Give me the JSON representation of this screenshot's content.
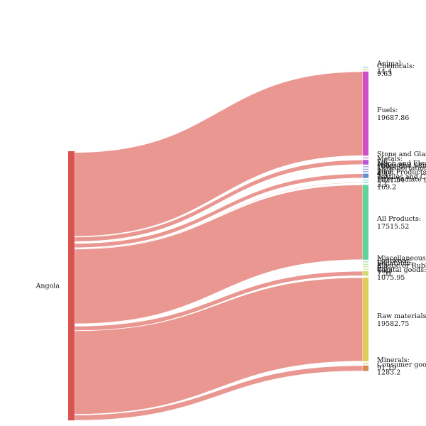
{
  "chart_data": {
    "type": "sankey",
    "source": {
      "name": "Angola",
      "color": "#d9534f"
    },
    "link_color": "#e06b61",
    "groups": [
      {
        "name": "Animal",
        "label": "Animal:",
        "value": 14.4,
        "color": "#5cc6e8",
        "value_label": "14.4",
        "value_hidden": true
      },
      {
        "name": "Chemicals",
        "label": "Chemicals:",
        "value": 9.63,
        "color": "#e8c86a",
        "value_label": "9.63"
      },
      {
        "name": "Fuels",
        "label": "Fuels:",
        "value": 19687.86,
        "color": "#d14fc6",
        "value_label": "19687.86"
      },
      {
        "name": "Stone and Glass",
        "label": "Stone and Glass:",
        "value": 7.6,
        "color": "#c04ad4",
        "value_label": "",
        "value_hidden": true
      },
      {
        "name": "Metals",
        "label": "Metals:",
        "value": 1093.97,
        "color": "#bb55d6",
        "value_label": "1093.97"
      },
      {
        "name": "Mach and Elec",
        "label": "Mach and Elec:",
        "value": 20.4,
        "color": "#8c7ae0",
        "value_label": "",
        "value_hidden": true
      },
      {
        "name": "Hides and Skins",
        "label": "Hides and Skins:",
        "value": 4.2,
        "color": "#7d86e4",
        "value_label": "",
        "value_hidden": true
      },
      {
        "name": "Transportation",
        "label": "Transportation:",
        "value": 5.31,
        "color": "#7690e6",
        "value_label": "",
        "value_hidden": true
      },
      {
        "name": "Food Products",
        "label": "Food Products:",
        "value": 1021.54,
        "color": "#6a8fd6",
        "value_label": "",
        "value_hidden": true
      },
      {
        "name": "Textiles and Clothing",
        "label": "Textiles and Clothing:",
        "value": 3.1,
        "color": "#7dcfe6",
        "value_label": "",
        "value_hidden": true
      },
      {
        "name": "Intermediate goods",
        "label": "Intermediate goods:",
        "value": 169.2,
        "color": "#5fd4c6",
        "value_label": "169.2"
      },
      {
        "name": "All Products",
        "label": "All Products:",
        "value": 17515.52,
        "color": "#5fd49a",
        "value_label": "17515.52"
      },
      {
        "name": "Miscellaneous",
        "label": "Miscellaneous:",
        "value": 6.3,
        "color": "#8fe08e",
        "value_label": "",
        "value_hidden": true
      },
      {
        "name": "Footwear",
        "label": "Footwear:",
        "value": 0.5,
        "color": "#9ee08a",
        "value_label": "",
        "value_hidden": true
      },
      {
        "name": "Vegetable",
        "label": "Vegetable:",
        "value": 10.2,
        "color": "#b0e07e",
        "value_label": "",
        "value_hidden": true
      },
      {
        "name": "Plastic or Rubber",
        "label": "Plastic or Rubber:",
        "value": 7.31,
        "color": "#c7e07a",
        "value_label": "",
        "value_hidden": true
      },
      {
        "name": "Capital goods",
        "label": "Capital goods:",
        "value": 1075.95,
        "color": "#d2dc6a",
        "value_label": "1075.95"
      },
      {
        "name": "Raw materials",
        "label": "Raw materials:",
        "value": 19582.75,
        "color": "#e0cc5a",
        "value_label": "19582.75"
      },
      {
        "name": "Minerals",
        "label": "Minerals:",
        "value": 91.19,
        "color": "#e0a85a",
        "value_label": "",
        "value_hidden": true
      },
      {
        "name": "Consumer goods",
        "label": "Consumer goods:",
        "value": 1283.2,
        "color": "#d98a52",
        "value_label": "1283.2"
      }
    ],
    "visible_text": {
      "animal_value": "14.4",
      "stone_value": "",
      "metals_value": "1093.97",
      "mach_value": "",
      "hides_value": "",
      "transport_value": "",
      "food_value": "1021.54",
      "misc_value": "",
      "footwear_value": "",
      "vegetable_value": "",
      "plastic_value": "7.31",
      "minerals_value": "91.19"
    }
  }
}
